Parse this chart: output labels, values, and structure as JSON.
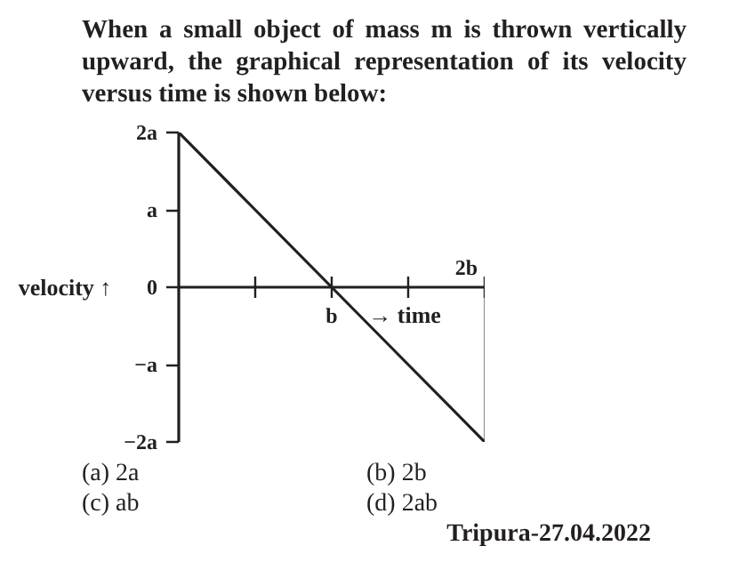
{
  "chart_data": {
    "type": "line",
    "title": "When a small object of mass m is thrown vertically upward, the graphical representation of its velocity versus time is shown below:",
    "xlabel": "→ time",
    "ylabel": "velocity ↑",
    "categories": [
      null,
      null,
      "b",
      null,
      "2b"
    ],
    "series": [
      {
        "color": "#231f20",
        "values": [
          2,
          1,
          0,
          -1,
          -2
        ]
      },
      {
        "type": "bar",
        "color": "#231f20",
        "values": [
          null,
          null,
          null,
          null,
          -2
        ]
      }
    ],
    "ylim": [
      -2,
      2
    ],
    "yticks": [
      {
        "value": -2,
        "label": "−2a"
      },
      {
        "value": -1,
        "label": "−a"
      },
      {
        "value": 0,
        "label": "0"
      },
      {
        "value": 1,
        "label": "a"
      },
      {
        "value": 2,
        "label": "2a"
      }
    ],
    "annotations": [
      "(a)  2a",
      "(b)  2b",
      "(c)  ab",
      "(d)  2ab",
      "Tripura-27.04.2022"
    ]
  }
}
